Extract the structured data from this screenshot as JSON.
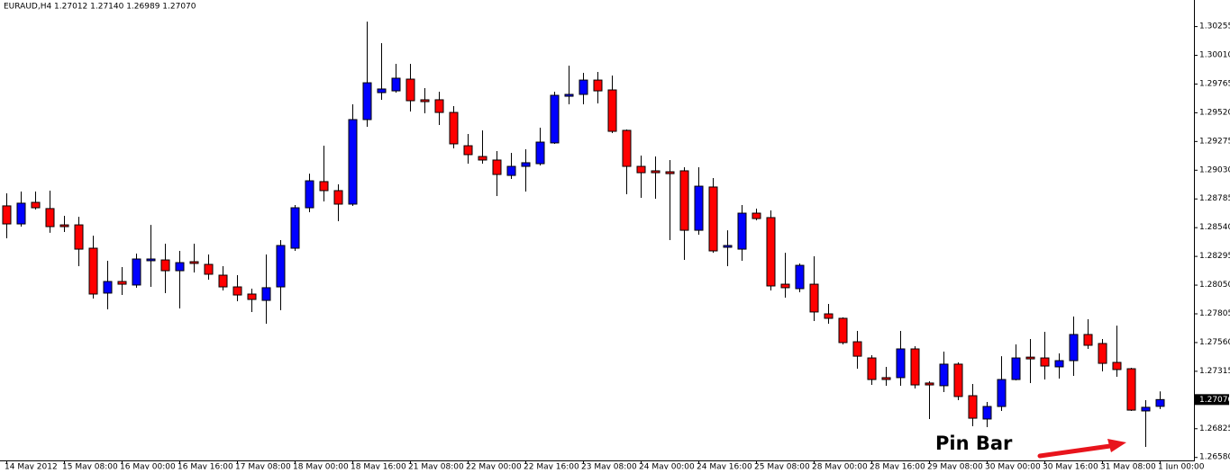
{
  "chart_data": {
    "type": "candlestick",
    "title": "EURAUD,H4  1.27012 1.27140 1.26989 1.27070",
    "annotation": "Pin Bar",
    "up_color": "#0000ff",
    "down_color": "#ff0000",
    "current_price": 1.2707,
    "ylim": [
      1.26551,
      1.30478
    ],
    "yticks": [
      1.30255,
      {
        "value": 1.3001,
        "label": "1.30010"
      },
      1.29765,
      {
        "value": 1.2952,
        "label": "1.29520"
      },
      1.29275,
      {
        "value": 1.2903,
        "label": "1.29030"
      },
      1.28785,
      {
        "value": 1.2854,
        "label": "1.28540"
      },
      1.28295,
      {
        "value": 1.2805,
        "label": "1.28050"
      },
      1.27805,
      {
        "value": 1.2756,
        "label": "1.27560"
      },
      1.27315,
      {
        "value": 1.2707,
        "label": "1.27070"
      },
      1.26825,
      {
        "value": 1.2658,
        "label": "1.26580"
      }
    ],
    "x": [
      "14 May 2012",
      null,
      null,
      null,
      "15 May 08:00",
      null,
      null,
      null,
      "16 May 00:00",
      null,
      null,
      null,
      "16 May 16:00",
      null,
      null,
      null,
      "17 May 08:00",
      null,
      null,
      null,
      "18 May 00:00",
      null,
      null,
      null,
      "18 May 16:00",
      null,
      null,
      null,
      "21 May 08:00",
      null,
      null,
      null,
      "22 May 00:00",
      null,
      null,
      null,
      "22 May 16:00",
      null,
      null,
      null,
      "23 May 08:00",
      null,
      null,
      null,
      "24 May 00:00",
      null,
      null,
      null,
      "24 May 16:00",
      null,
      null,
      null,
      "25 May 08:00",
      null,
      null,
      null,
      "28 May 00:00",
      null,
      null,
      null,
      "28 May 16:00",
      null,
      null,
      null,
      "29 May 08:00",
      null,
      null,
      null,
      "30 May 00:00",
      null,
      null,
      null,
      "30 May 16:00",
      null,
      null,
      null,
      "31 May 08:00",
      null,
      null,
      null,
      "1 Jun 00:00"
    ],
    "open": [
      1.28722,
      1.28568,
      1.28752,
      1.28699,
      1.2856,
      1.2856,
      1.28361,
      1.27978,
      1.28077,
      1.28047,
      1.28254,
      1.28261,
      1.28169,
      1.28246,
      1.28223,
      1.28131,
      1.28031,
      1.2797,
      1.27916,
      1.28031,
      1.28361,
      1.28706,
      1.28929,
      1.28852,
      1.28737,
      1.29458,
      1.29688,
      1.29703,
      1.29803,
      1.29627,
      1.29627,
      1.29519,
      1.29235,
      1.29143,
      1.29113,
      1.28982,
      1.29059,
      1.29082,
      1.29259,
      1.29657,
      1.29673,
      1.29795,
      1.29711,
      1.29366,
      1.29059,
      1.29021,
      1.29013,
      1.29021,
      1.28514,
      1.28883,
      1.28369,
      1.28353,
      1.2866,
      1.28622,
      1.28054,
      1.28016,
      1.28054,
      1.27801,
      1.27763,
      1.27563,
      1.27425,
      1.27257,
      1.27257,
      1.27502,
      1.27211,
      1.27188,
      1.27372,
      1.27103,
      1.26904,
      1.27011,
      1.27241,
      1.27432,
      1.27425,
      1.27349,
      1.27402,
      1.27625,
      1.27548,
      1.27387,
      1.27333,
      1.26973,
      1.27012
    ],
    "high": [
      1.28829,
      1.28844,
      1.28844,
      1.28852,
      1.28637,
      1.28629,
      1.28468,
      1.28254,
      1.282,
      1.28315,
      1.2856,
      1.28399,
      1.28338,
      1.28399,
      1.28307,
      1.28208,
      1.28131,
      1.28016,
      1.28307,
      1.2843,
      1.28729,
      1.28997,
      1.29235,
      1.28906,
      1.29588,
      1.30294,
      1.3011,
      1.29933,
      1.29933,
      1.29726,
      1.29696,
      1.29573,
      1.29335,
      1.29366,
      1.29189,
      1.29174,
      1.29205,
      1.29389,
      1.29696,
      1.29918,
      1.29857,
      1.29864,
      1.29834,
      1.29374,
      1.29151,
      1.29143,
      1.29113,
      1.29051,
      1.29051,
      1.28959,
      1.28514,
      1.28729,
      1.28699,
      1.28683,
      1.28322,
      1.28231,
      1.28292,
      1.27886,
      1.27771,
      1.27655,
      1.27448,
      1.27349,
      1.27655,
      1.27525,
      1.27226,
      1.27479,
      1.27387,
      1.27203,
      1.2705,
      1.2744,
      1.2754,
      1.27586,
      1.27648,
      1.27464,
      1.27778,
      1.27755,
      1.27586,
      1.27701,
      1.27341,
      1.27065,
      1.2714
    ],
    "low": [
      1.28445,
      1.28545,
      1.28691,
      1.28492,
      1.28499,
      1.28208,
      1.27932,
      1.2784,
      1.27962,
      1.28024,
      1.28031,
      1.27978,
      1.27847,
      1.28154,
      1.28093,
      1.28001,
      1.27909,
      1.27817,
      1.27717,
      1.27832,
      1.28338,
      1.28668,
      1.2876,
      1.28591,
      1.28722,
      1.29397,
      1.29627,
      1.29688,
      1.29527,
      1.29512,
      1.29412,
      1.29212,
      1.29082,
      1.29082,
      1.28806,
      1.28952,
      1.28844,
      1.29067,
      1.29251,
      1.29588,
      1.29588,
      1.29596,
      1.29343,
      1.28821,
      1.28791,
      1.28783,
      1.2843,
      1.28261,
      1.28476,
      1.28322,
      1.28208,
      1.28254,
      1.28599,
      1.28001,
      1.27939,
      1.27985,
      1.2774,
      1.27717,
      1.2754,
      1.27333,
      1.27195,
      1.27188,
      1.27188,
      1.27165,
      1.26904,
      1.27134,
      1.27065,
      1.26842,
      1.26835,
      1.26973,
      1.27234,
      1.27211,
      1.27241,
      1.27249,
      1.27272,
      1.27502,
      1.2731,
      1.27264,
      1.26973,
      1.26666,
      1.26989
    ],
    "close": [
      1.28568,
      1.28745,
      1.28706,
      1.28545,
      1.28545,
      1.28353,
      1.2797,
      1.28077,
      1.28054,
      1.28269,
      1.28269,
      1.28169,
      1.28238,
      1.28231,
      1.28139,
      1.28031,
      1.27962,
      1.27924,
      1.28024,
      1.28384,
      1.28706,
      1.28936,
      1.28852,
      1.28737,
      1.29458,
      1.29772,
      1.29719,
      1.29811,
      1.29619,
      1.29611,
      1.29519,
      1.29251,
      1.29159,
      1.29113,
      1.2899,
      1.29059,
      1.2909,
      1.29266,
      1.29665,
      1.29673,
      1.29795,
      1.29703,
      1.29358,
      1.29059,
      1.29005,
      1.29005,
      1.28997,
      1.28514,
      1.2889,
      1.28338,
      1.28384,
      1.2866,
      1.28614,
      1.28039,
      1.28024,
      1.28215,
      1.27817,
      1.27763,
      1.27556,
      1.2744,
      1.27241,
      1.27241,
      1.27502,
      1.27195,
      1.27195,
      1.27372,
      1.27096,
      1.26911,
      1.27011,
      1.27241,
      1.27425,
      1.27417,
      1.27356,
      1.27402,
      1.27625,
      1.27533,
      1.27379,
      1.27326,
      1.2698,
      1.27004,
      1.2707
    ]
  }
}
